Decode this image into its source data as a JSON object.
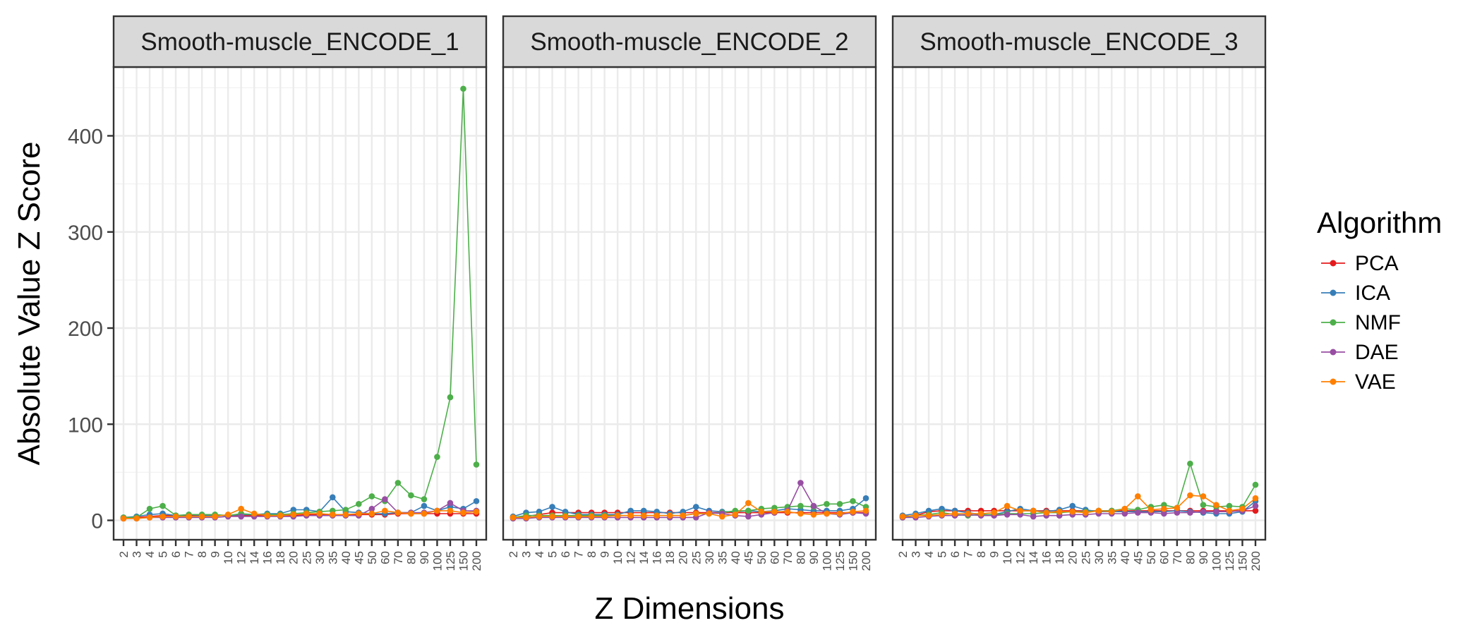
{
  "chart_data": {
    "type": "line",
    "ylabel": "Absolute Value Z Score",
    "xlabel": "Z Dimensions",
    "x": [
      "2",
      "3",
      "4",
      "5",
      "6",
      "7",
      "8",
      "9",
      "10",
      "12",
      "14",
      "16",
      "18",
      "20",
      "25",
      "30",
      "35",
      "40",
      "45",
      "50",
      "60",
      "70",
      "80",
      "90",
      "100",
      "125",
      "150",
      "200"
    ],
    "ylim": [
      -20,
      470
    ],
    "yticks": [
      0,
      100,
      200,
      300,
      400
    ],
    "grid": true,
    "legend": {
      "title": "Algorithm",
      "position": "right",
      "items": [
        "PCA",
        "ICA",
        "NMF",
        "DAE",
        "VAE"
      ]
    },
    "colors": {
      "PCA": "#e41a1c",
      "ICA": "#377eb8",
      "NMF": "#4daf4a",
      "DAE": "#984ea3",
      "VAE": "#ff7f00"
    },
    "panels": [
      {
        "title": "Smooth-muscle_ENCODE_1",
        "series": [
          {
            "name": "PCA",
            "values": [
              2,
              3,
              4,
              5,
              5,
              5,
              5,
              5,
              5,
              5,
              5,
              5,
              5,
              5,
              6,
              6,
              6,
              6,
              6,
              6,
              6,
              7,
              7,
              7,
              7,
              7,
              7,
              7
            ]
          },
          {
            "name": "ICA",
            "values": [
              3,
              4,
              6,
              7,
              5,
              4,
              5,
              5,
              5,
              6,
              6,
              7,
              7,
              11,
              11,
              9,
              24,
              9,
              8,
              7,
              7,
              8,
              8,
              15,
              10,
              14,
              12,
              20
            ]
          },
          {
            "name": "NMF",
            "values": [
              3,
              3,
              12,
              15,
              5,
              6,
              6,
              6,
              5,
              7,
              6,
              6,
              6,
              7,
              8,
              9,
              10,
              11,
              17,
              25,
              20,
              39,
              26,
              22,
              66,
              128,
              449,
              58
            ]
          },
          {
            "name": "DAE",
            "values": [
              2,
              2,
              3,
              3,
              3,
              3,
              3,
              3,
              4,
              4,
              4,
              4,
              4,
              4,
              5,
              5,
              5,
              5,
              5,
              12,
              22,
              8,
              8,
              8,
              10,
              18,
              10,
              10
            ]
          },
          {
            "name": "VAE",
            "values": [
              2,
              2,
              3,
              4,
              4,
              4,
              4,
              4,
              6,
              12,
              7,
              5,
              5,
              6,
              7,
              7,
              6,
              6,
              7,
              7,
              10,
              8,
              7,
              7,
              10,
              10,
              8,
              9
            ]
          }
        ]
      },
      {
        "title": "Smooth-muscle_ENCODE_2",
        "series": [
          {
            "name": "PCA",
            "values": [
              3,
              4,
              6,
              8,
              8,
              8,
              8,
              8,
              8,
              8,
              8,
              8,
              8,
              8,
              8,
              8,
              8,
              8,
              8,
              8,
              8,
              8,
              8,
              8,
              8,
              8,
              8,
              8
            ]
          },
          {
            "name": "ICA",
            "values": [
              4,
              8,
              9,
              14,
              9,
              6,
              6,
              6,
              6,
              10,
              10,
              9,
              7,
              9,
              14,
              10,
              9,
              9,
              10,
              9,
              10,
              12,
              11,
              10,
              10,
              10,
              12,
              23
            ]
          },
          {
            "name": "NMF",
            "values": [
              3,
              5,
              5,
              5,
              5,
              5,
              5,
              5,
              5,
              5,
              5,
              5,
              5,
              5,
              7,
              7,
              8,
              10,
              10,
              12,
              13,
              14,
              15,
              14,
              17,
              17,
              20,
              14
            ]
          },
          {
            "name": "DAE",
            "values": [
              2,
              2,
              3,
              3,
              3,
              3,
              3,
              3,
              3,
              3,
              3,
              3,
              3,
              3,
              3,
              8,
              7,
              5,
              4,
              6,
              8,
              10,
              39,
              15,
              7,
              6,
              8,
              7
            ]
          },
          {
            "name": "VAE",
            "values": [
              3,
              3,
              4,
              4,
              4,
              4,
              4,
              4,
              5,
              5,
              5,
              5,
              5,
              5,
              7,
              7,
              4,
              6,
              18,
              9,
              9,
              9,
              7,
              6,
              7,
              7,
              9,
              10
            ]
          }
        ]
      },
      {
        "title": "Smooth-muscle_ENCODE_3",
        "series": [
          {
            "name": "PCA",
            "values": [
              4,
              5,
              9,
              10,
              10,
              10,
              10,
              10,
              10,
              10,
              10,
              10,
              10,
              10,
              10,
              10,
              10,
              10,
              10,
              10,
              10,
              10,
              10,
              10,
              10,
              10,
              10,
              10
            ]
          },
          {
            "name": "ICA",
            "values": [
              5,
              7,
              10,
              12,
              10,
              8,
              6,
              6,
              9,
              12,
              10,
              9,
              11,
              15,
              11,
              9,
              9,
              9,
              9,
              9,
              9,
              10,
              9,
              8,
              7,
              7,
              9,
              20
            ]
          },
          {
            "name": "NMF",
            "values": [
              3,
              5,
              6,
              8,
              6,
              5,
              6,
              6,
              7,
              7,
              7,
              8,
              8,
              9,
              9,
              10,
              10,
              12,
              11,
              14,
              16,
              13,
              59,
              16,
              14,
              15,
              14,
              37
            ]
          },
          {
            "name": "DAE",
            "values": [
              3,
              3,
              4,
              5,
              5,
              6,
              5,
              5,
              6,
              6,
              4,
              5,
              5,
              6,
              6,
              7,
              7,
              7,
              8,
              8,
              7,
              8,
              8,
              9,
              9,
              9,
              10,
              15
            ]
          },
          {
            "name": "VAE",
            "values": [
              4,
              5,
              5,
              6,
              7,
              7,
              7,
              8,
              15,
              10,
              10,
              8,
              9,
              9,
              8,
              10,
              9,
              12,
              25,
              11,
              12,
              13,
              26,
              25,
              16,
              10,
              12,
              23
            ]
          }
        ]
      }
    ]
  }
}
